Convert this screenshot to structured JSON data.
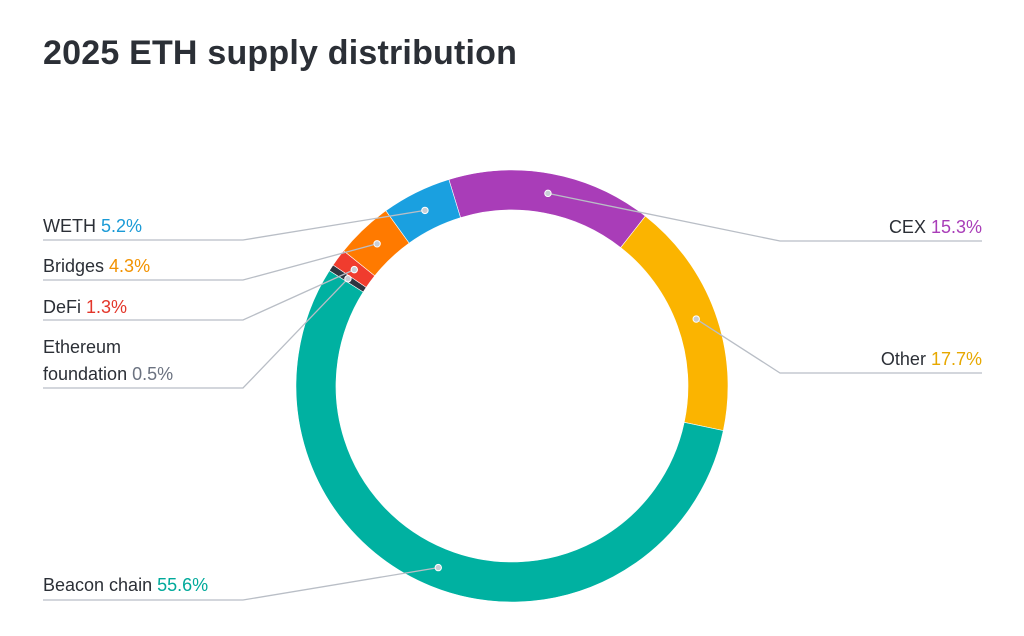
{
  "title": "2025 ETH supply distribution",
  "chart_data": {
    "type": "pie",
    "title": "2025 ETH supply distribution",
    "slices": [
      {
        "name": "CEX",
        "value": 15.3,
        "value_label": "15.3%",
        "color": "#a93db8",
        "side": "right"
      },
      {
        "name": "Other",
        "value": 17.7,
        "value_label": "17.7%",
        "color": "#fbb400",
        "side": "right"
      },
      {
        "name": "Beacon chain",
        "value": 55.6,
        "value_label": "55.6%",
        "color": "#00b1a1",
        "side": "left"
      },
      {
        "name": "Ethereum foundation",
        "name_lines": [
          "Ethereum",
          "foundation"
        ],
        "value": 0.5,
        "value_label": "0.5%",
        "color": "#2e3540",
        "side": "left"
      },
      {
        "name": "DeFi",
        "value": 1.3,
        "value_label": "1.3%",
        "color": "#f03c2e",
        "side": "left"
      },
      {
        "name": "Bridges",
        "value": 4.3,
        "value_label": "4.3%",
        "color": "#ff7a00",
        "side": "left"
      },
      {
        "name": "WETH",
        "value": 5.2,
        "value_label": "5.2%",
        "color": "#1aa0e0",
        "side": "left"
      }
    ],
    "value_label_colors": {
      "CEX": "#a93db8",
      "Other": "#e7a800",
      "Beacon chain": "#00a99a",
      "Ethereum foundation": "#6b7280",
      "DeFi": "#e3362a",
      "Bridges": "#f29200",
      "WETH": "#1a9ad6"
    },
    "legend": "callouts"
  }
}
